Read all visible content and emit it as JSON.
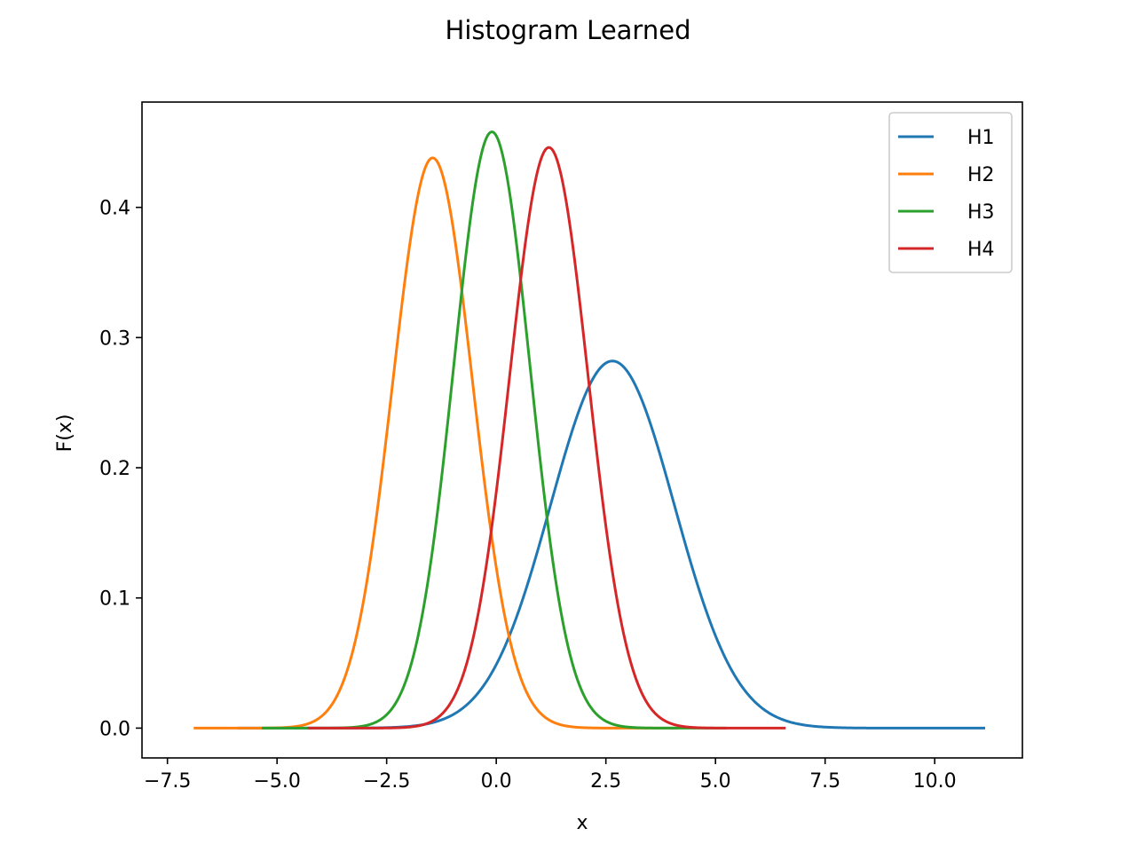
{
  "chart_data": {
    "type": "line",
    "title": "Histogram Learned",
    "xlabel": "x",
    "ylabel": "F(x)",
    "xlim": [
      -8.08,
      12.0
    ],
    "ylim": [
      -0.0229,
      0.4809
    ],
    "xticks": [
      -7.5,
      -5.0,
      -2.5,
      0.0,
      2.5,
      5.0,
      7.5,
      10.0
    ],
    "xtick_labels": [
      "−7.5",
      "−5.0",
      "−2.5",
      "0.0",
      "2.5",
      "5.0",
      "7.5",
      "10.0"
    ],
    "yticks": [
      0.0,
      0.1,
      0.2,
      0.3,
      0.4
    ],
    "ytick_labels": [
      "0.0",
      "0.1",
      "0.2",
      "0.3",
      "0.4"
    ],
    "grid": false,
    "legend": "top-right",
    "series": [
      {
        "name": "H1",
        "color": "#1f77b4",
        "mean": 2.65,
        "peak": 0.282,
        "xrange": [
          -5.9,
          11.15
        ]
      },
      {
        "name": "H2",
        "color": "#ff7f0e",
        "mean": -1.45,
        "peak": 0.438,
        "xrange": [
          -6.9,
          4.15
        ]
      },
      {
        "name": "H3",
        "color": "#2ca02c",
        "mean": -0.1,
        "peak": 0.458,
        "xrange": [
          -5.35,
          5.25
        ]
      },
      {
        "name": "H4",
        "color": "#d62728",
        "mean": 1.2,
        "peak": 0.446,
        "xrange": [
          -4.3,
          6.6
        ]
      }
    ]
  }
}
